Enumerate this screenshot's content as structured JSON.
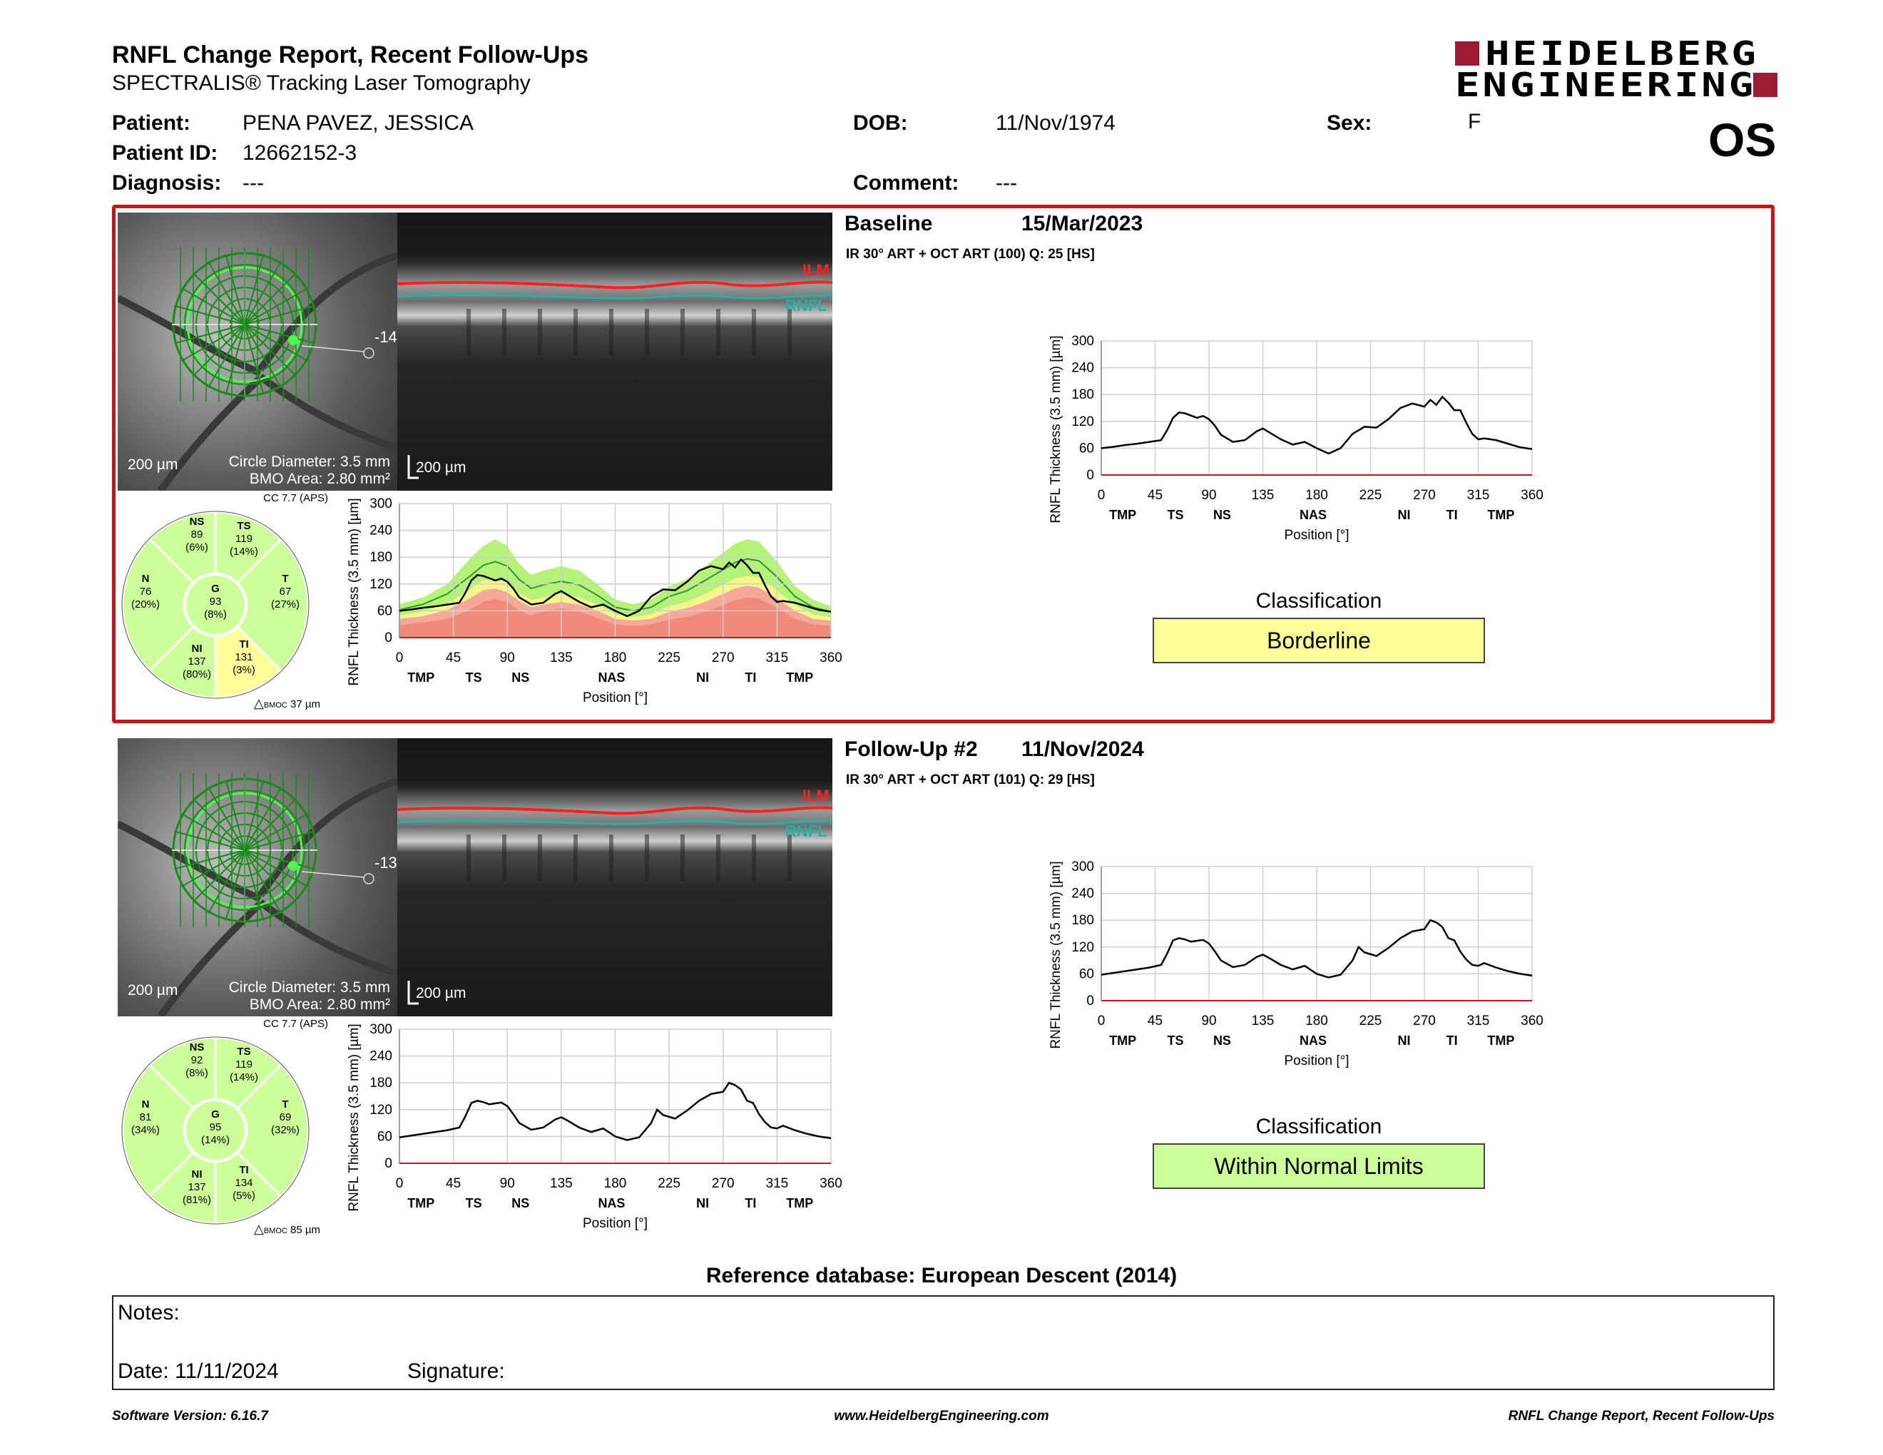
{
  "header": {
    "title": "RNFL Change Report, Recent Follow-Ups",
    "subtitle": "SPECTRALIS® Tracking Laser Tomography",
    "logo_line1": "HEIDELBERG",
    "logo_line2": "ENGINEERING",
    "eye": "OS"
  },
  "patient": {
    "patient_label": "Patient:",
    "patient_value": "PENA PAVEZ, JESSICA",
    "id_label": "Patient ID:",
    "id_value": "12662152-3",
    "diagnosis_label": "Diagnosis:",
    "diagnosis_value": "---",
    "dob_label": "DOB:",
    "dob_value": "11/Nov/1974",
    "comment_label": "Comment:",
    "comment_value": "---",
    "sex_label": "Sex:",
    "sex_value": "F"
  },
  "exams": [
    {
      "heading": "Baseline",
      "date": "15/Mar/2023",
      "scan_info": "IR 30° ART + OCT ART (100) Q: 25 [HS]",
      "scale_left": "200 µm",
      "circle_diameter": "Circle Diameter: 3.5 mm",
      "bmo_area": "BMO Area: 2.80 mm²",
      "scale_right": "200 µm",
      "angle": "-14.",
      "ilm": "ILM",
      "rnfl": "RNFL",
      "cc": "CC 7.7 (APS)",
      "bmoc": "37 µm",
      "sectors": {
        "NS": {
          "label": "NS",
          "value": "89",
          "pct": "(6%)"
        },
        "TS": {
          "label": "TS",
          "value": "119",
          "pct": "(14%)"
        },
        "N": {
          "label": "N",
          "value": "76",
          "pct": "(20%)"
        },
        "G": {
          "label": "G",
          "value": "93",
          "pct": "(8%)"
        },
        "T": {
          "label": "T",
          "value": "67",
          "pct": "(27%)"
        },
        "NI": {
          "label": "NI",
          "value": "137",
          "pct": "(80%)"
        },
        "TI": {
          "label": "TI",
          "value": "131",
          "pct": "(3%)"
        }
      },
      "classification_label": "Classification",
      "classification": "Borderline",
      "classification_color": "#ffff99"
    },
    {
      "heading": "Follow-Up #2",
      "date": "11/Nov/2024",
      "scan_info": "IR 30° ART + OCT ART (101) Q: 29 [HS]",
      "scale_left": "200 µm",
      "circle_diameter": "Circle Diameter: 3.5 mm",
      "bmo_area": "BMO Area: 2.80 mm²",
      "scale_right": "200 µm",
      "angle": "-13",
      "ilm": "ILM",
      "rnfl": "RNFL",
      "cc": "CC 7.7 (APS)",
      "bmoc": "85 µm",
      "sectors": {
        "NS": {
          "label": "NS",
          "value": "92",
          "pct": "(8%)"
        },
        "TS": {
          "label": "TS",
          "value": "119",
          "pct": "(14%)"
        },
        "N": {
          "label": "N",
          "value": "81",
          "pct": "(34%)"
        },
        "G": {
          "label": "G",
          "value": "95",
          "pct": "(14%)"
        },
        "T": {
          "label": "T",
          "value": "69",
          "pct": "(32%)"
        },
        "NI": {
          "label": "NI",
          "value": "137",
          "pct": "(81%)"
        },
        "TI": {
          "label": "TI",
          "value": "134",
          "pct": "(5%)"
        }
      },
      "classification_label": "Classification",
      "classification": "Within Normal Limits",
      "classification_color": "#ccff99"
    }
  ],
  "chart_data": [
    {
      "type": "line",
      "title": "",
      "xlabel": "Position [°]",
      "ylabel": "RNFL Thickness (3.5 mm) [µm]",
      "xlim": [
        0,
        360
      ],
      "ylim": [
        0,
        300
      ],
      "xticks": [
        0,
        45,
        90,
        135,
        180,
        225,
        270,
        315,
        360
      ],
      "yticks": [
        0,
        60,
        120,
        180,
        240,
        300
      ],
      "sector_labels": [
        {
          "x": 18,
          "label": "TMP"
        },
        {
          "x": 62,
          "label": "TS"
        },
        {
          "x": 101,
          "label": "NS"
        },
        {
          "x": 177,
          "label": "NAS"
        },
        {
          "x": 253,
          "label": "NI"
        },
        {
          "x": 293,
          "label": "TI"
        },
        {
          "x": 334,
          "label": "TMP"
        }
      ],
      "series": [
        {
          "x": [
            0,
            10,
            20,
            30,
            40,
            50,
            55,
            60,
            65,
            70,
            75,
            80,
            85,
            90,
            95,
            100,
            110,
            120,
            130,
            135,
            140,
            150,
            160,
            170,
            180,
            190,
            200,
            210,
            220,
            230,
            240,
            250,
            260,
            270,
            275,
            280,
            285,
            290,
            295,
            300,
            305,
            310,
            315,
            320,
            330,
            340,
            350,
            360
          ],
          "values": [
            60,
            63,
            67,
            70,
            74,
            78,
            100,
            128,
            140,
            138,
            133,
            128,
            132,
            125,
            110,
            90,
            74,
            78,
            98,
            104,
            96,
            80,
            68,
            74,
            60,
            48,
            60,
            92,
            108,
            106,
            125,
            150,
            160,
            153,
            168,
            157,
            175,
            162,
            145,
            145,
            117,
            92,
            80,
            82,
            78,
            70,
            62,
            58
          ]
        }
      ]
    },
    {
      "type": "line",
      "title": "",
      "xlabel": "Position [°]",
      "ylabel": "RNFL Thickness (3.5 mm) [µm]",
      "xlim": [
        0,
        360
      ],
      "ylim": [
        0,
        300
      ],
      "xticks": [
        0,
        45,
        90,
        135,
        180,
        225,
        270,
        315,
        360
      ],
      "yticks": [
        0,
        60,
        120,
        180,
        240,
        300
      ],
      "sector_labels": [
        {
          "x": 18,
          "label": "TMP"
        },
        {
          "x": 62,
          "label": "TS"
        },
        {
          "x": 101,
          "label": "NS"
        },
        {
          "x": 177,
          "label": "NAS"
        },
        {
          "x": 253,
          "label": "NI"
        },
        {
          "x": 293,
          "label": "TI"
        },
        {
          "x": 334,
          "label": "TMP"
        }
      ],
      "series": [
        {
          "x": [
            0,
            10,
            20,
            30,
            40,
            50,
            55,
            60,
            65,
            70,
            75,
            80,
            85,
            90,
            95,
            100,
            110,
            120,
            130,
            135,
            140,
            150,
            160,
            170,
            180,
            190,
            200,
            210,
            215,
            220,
            230,
            240,
            250,
            260,
            270,
            275,
            280,
            285,
            290,
            295,
            300,
            305,
            310,
            315,
            320,
            330,
            340,
            350,
            360
          ],
          "values": [
            58,
            62,
            66,
            70,
            74,
            80,
            105,
            135,
            140,
            137,
            132,
            134,
            136,
            128,
            110,
            90,
            75,
            80,
            98,
            103,
            96,
            80,
            70,
            78,
            60,
            52,
            58,
            90,
            120,
            108,
            100,
            118,
            140,
            155,
            160,
            180,
            175,
            165,
            140,
            135,
            110,
            92,
            80,
            78,
            84,
            74,
            66,
            60,
            56
          ]
        }
      ]
    },
    {
      "type": "line",
      "title": "",
      "xlabel": "Position [°]",
      "ylabel": "RNFL Thickness (3.5 mm) [µm]",
      "xlim": [
        0,
        360
      ],
      "ylim": [
        0,
        300
      ],
      "xticks": [
        0,
        45,
        90,
        135,
        180,
        225,
        270,
        315,
        360
      ],
      "yticks": [
        0,
        60,
        120,
        180,
        240,
        300
      ],
      "sector_labels": [
        {
          "x": 18,
          "label": "TMP"
        },
        {
          "x": 62,
          "label": "TS"
        },
        {
          "x": 101,
          "label": "NS"
        },
        {
          "x": 177,
          "label": "NAS"
        },
        {
          "x": 253,
          "label": "NI"
        },
        {
          "x": 293,
          "label": "TI"
        },
        {
          "x": 334,
          "label": "TMP"
        }
      ],
      "normative": {
        "x": [
          0,
          20,
          40,
          60,
          70,
          80,
          90,
          100,
          110,
          120,
          135,
          150,
          165,
          180,
          195,
          210,
          225,
          240,
          255,
          270,
          280,
          290,
          300,
          315,
          330,
          345,
          360
        ],
        "p99_upper": [
          75,
          90,
          120,
          180,
          205,
          220,
          205,
          165,
          140,
          150,
          160,
          150,
          120,
          85,
          75,
          85,
          115,
          130,
          160,
          190,
          210,
          220,
          215,
          170,
          115,
          85,
          70
        ],
        "p95_mean": [
          62,
          75,
          98,
          140,
          162,
          170,
          160,
          130,
          110,
          118,
          126,
          118,
          95,
          68,
          60,
          68,
          92,
          105,
          128,
          152,
          168,
          176,
          172,
          136,
          92,
          68,
          58
        ],
        "p5_lower": [
          50,
          58,
          76,
          110,
          128,
          132,
          124,
          100,
          84,
          90,
          98,
          90,
          74,
          52,
          46,
          52,
          70,
          80,
          98,
          118,
          132,
          138,
          134,
          106,
          72,
          52,
          45
        ],
        "p1_lower": [
          42,
          48,
          62,
          90,
          106,
          110,
          102,
          82,
          68,
          74,
          80,
          74,
          60,
          42,
          38,
          42,
          58,
          66,
          80,
          98,
          110,
          116,
          112,
          88,
          60,
          42,
          38
        ],
        "borderline": [
          28,
          34,
          42,
          64,
          80,
          86,
          80,
          60,
          50,
          58,
          66,
          58,
          44,
          30,
          26,
          30,
          40,
          46,
          58,
          72,
          84,
          90,
          88,
          66,
          42,
          30,
          26
        ]
      },
      "series": [
        {
          "x": [
            0,
            10,
            20,
            30,
            40,
            50,
            55,
            60,
            65,
            70,
            75,
            80,
            85,
            90,
            95,
            100,
            110,
            120,
            130,
            135,
            140,
            150,
            160,
            170,
            180,
            190,
            200,
            210,
            220,
            230,
            240,
            250,
            260,
            270,
            275,
            280,
            285,
            290,
            295,
            300,
            305,
            310,
            315,
            320,
            330,
            340,
            350,
            360
          ],
          "values": [
            60,
            63,
            67,
            70,
            74,
            78,
            100,
            128,
            140,
            138,
            133,
            128,
            132,
            125,
            110,
            90,
            74,
            78,
            98,
            104,
            96,
            80,
            68,
            74,
            60,
            48,
            60,
            92,
            108,
            106,
            125,
            150,
            160,
            153,
            168,
            157,
            175,
            162,
            145,
            145,
            117,
            92,
            80,
            82,
            78,
            70,
            62,
            58
          ]
        }
      ]
    },
    {
      "type": "line",
      "title": "",
      "xlabel": "Position [°]",
      "ylabel": "RNFL Thickness (3.5 mm) [µm]",
      "xlim": [
        0,
        360
      ],
      "ylim": [
        0,
        300
      ],
      "xticks": [
        0,
        45,
        90,
        135,
        180,
        225,
        270,
        315,
        360
      ],
      "yticks": [
        0,
        60,
        120,
        180,
        240,
        300
      ],
      "sector_labels": [
        {
          "x": 18,
          "label": "TMP"
        },
        {
          "x": 62,
          "label": "TS"
        },
        {
          "x": 101,
          "label": "NS"
        },
        {
          "x": 177,
          "label": "NAS"
        },
        {
          "x": 253,
          "label": "NI"
        },
        {
          "x": 293,
          "label": "TI"
        },
        {
          "x": 334,
          "label": "TMP"
        }
      ],
      "series": [
        {
          "x": [
            0,
            10,
            20,
            30,
            40,
            50,
            55,
            60,
            65,
            70,
            75,
            80,
            85,
            90,
            95,
            100,
            110,
            120,
            130,
            135,
            140,
            150,
            160,
            170,
            180,
            190,
            200,
            210,
            215,
            220,
            230,
            240,
            250,
            260,
            270,
            275,
            280,
            285,
            290,
            295,
            300,
            305,
            310,
            315,
            320,
            330,
            340,
            350,
            360
          ],
          "values": [
            58,
            62,
            66,
            70,
            74,
            80,
            105,
            135,
            140,
            137,
            132,
            134,
            136,
            128,
            110,
            90,
            75,
            80,
            98,
            103,
            96,
            80,
            70,
            78,
            60,
            52,
            58,
            90,
            120,
            108,
            100,
            118,
            140,
            155,
            160,
            180,
            175,
            165,
            140,
            135,
            110,
            92,
            80,
            78,
            84,
            74,
            66,
            60,
            56
          ]
        }
      ]
    }
  ],
  "reference": "Reference database: European Descent (2014)",
  "notes": {
    "notes_label": "Notes:",
    "date_label": "Date: 11/11/2024",
    "signature_label": "Signature:"
  },
  "footer": {
    "left": "Software Version: 6.16.7",
    "center": "www.HeidelbergEngineering.com",
    "right": "RNFL Change Report, Recent Follow-Ups"
  }
}
